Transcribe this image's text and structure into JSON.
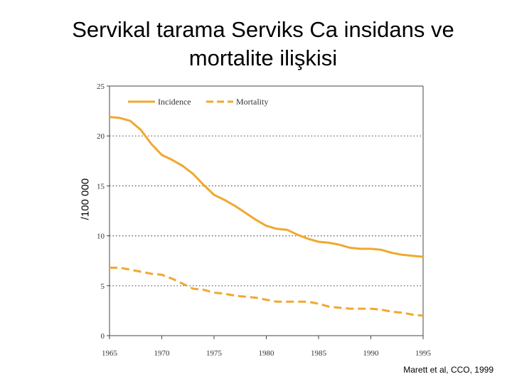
{
  "title": {
    "line1": "Servikal tarama  Serviks Ca insidans ve",
    "line2": "mortalite ilişkisi"
  },
  "citation": "Marett et al, CCO, 1999",
  "chart_data": {
    "type": "line",
    "title": "",
    "ylabel": "/100 000",
    "xlabel": "",
    "xlim": [
      1965,
      1995
    ],
    "ylim": [
      0,
      25
    ],
    "xticks": [
      "1965",
      "1970",
      "1975",
      "1980",
      "1985",
      "1990",
      "1995"
    ],
    "yticks": [
      "0",
      "5",
      "10",
      "15",
      "20",
      "25"
    ],
    "grid": "horizontal dotted",
    "legend": "top-left inside",
    "series": [
      {
        "name": "Incidence",
        "style": "solid",
        "color": "#f0a830",
        "x": [
          1965,
          1966,
          1967,
          1968,
          1969,
          1970,
          1971,
          1972,
          1973,
          1974,
          1975,
          1976,
          1977,
          1978,
          1979,
          1980,
          1981,
          1982,
          1983,
          1984,
          1985,
          1986,
          1987,
          1988,
          1989,
          1990,
          1991,
          1992,
          1993,
          1994,
          1995
        ],
        "y": [
          21.9,
          21.8,
          21.5,
          20.6,
          19.2,
          18.1,
          17.6,
          17.0,
          16.2,
          15.1,
          14.1,
          13.6,
          13.0,
          12.3,
          11.6,
          11.0,
          10.7,
          10.6,
          10.1,
          9.7,
          9.4,
          9.3,
          9.1,
          8.8,
          8.7,
          8.7,
          8.6,
          8.3,
          8.1,
          8.0,
          7.9
        ]
      },
      {
        "name": "Mortality",
        "style": "dashed",
        "color": "#f0a830",
        "x": [
          1965,
          1966,
          1967,
          1968,
          1969,
          1970,
          1971,
          1972,
          1973,
          1974,
          1975,
          1976,
          1977,
          1978,
          1979,
          1980,
          1981,
          1982,
          1983,
          1984,
          1985,
          1986,
          1987,
          1988,
          1989,
          1990,
          1991,
          1992,
          1993,
          1994,
          1995
        ],
        "y": [
          6.8,
          6.8,
          6.6,
          6.4,
          6.2,
          6.1,
          5.7,
          5.2,
          4.7,
          4.6,
          4.3,
          4.2,
          4.0,
          3.9,
          3.8,
          3.6,
          3.4,
          3.4,
          3.4,
          3.4,
          3.2,
          2.9,
          2.8,
          2.7,
          2.7,
          2.7,
          2.6,
          2.4,
          2.3,
          2.1,
          2.0
        ]
      }
    ]
  }
}
